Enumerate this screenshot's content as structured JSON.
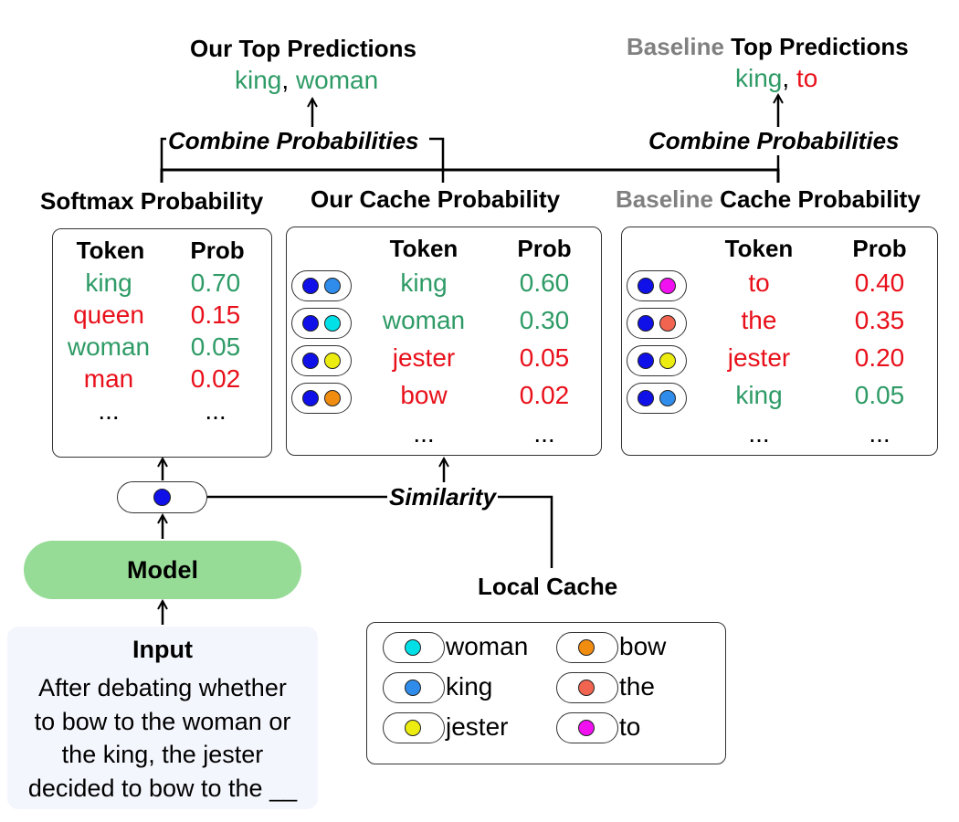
{
  "colors": {
    "green": "#2e9b66",
    "red": "#e8101a",
    "gray": "#808080",
    "query_dot": "#1010e8",
    "model_fill": "#96dc96",
    "input_fill": "#f4f6fd"
  },
  "our_predictions": {
    "title": "Our Top Predictions",
    "tokens": [
      {
        "text": "king",
        "color": "green"
      },
      {
        "text": ", ",
        "color": "black"
      },
      {
        "text": "woman",
        "color": "green"
      }
    ]
  },
  "baseline_predictions": {
    "title_prefix": "Baseline",
    "title_suffix": " Top Predictions",
    "tokens": [
      {
        "text": "king",
        "color": "green"
      },
      {
        "text": ", ",
        "color": "black"
      },
      {
        "text": "to",
        "color": "red"
      }
    ]
  },
  "combine_left": "Combine Probabilities",
  "combine_right": "Combine Probabilities",
  "softmax": {
    "title": "Softmax Probability",
    "header_token": "Token",
    "header_prob": "Prob",
    "rows": [
      {
        "token": "king",
        "prob": "0.70",
        "color": "green"
      },
      {
        "token": "queen",
        "prob": "0.15",
        "color": "red"
      },
      {
        "token": "woman",
        "prob": "0.05",
        "color": "green"
      },
      {
        "token": "man",
        "prob": "0.02",
        "color": "red"
      }
    ],
    "ellipsis": "..."
  },
  "our_cache": {
    "title": "Our Cache Probability",
    "header_token": "Token",
    "header_prob": "Prob",
    "rows": [
      {
        "token": "king",
        "prob": "0.60",
        "color": "green",
        "dot": "#2f8cea"
      },
      {
        "token": "woman",
        "prob": "0.30",
        "color": "green",
        "dot": "#00e0e6"
      },
      {
        "token": "jester",
        "prob": "0.05",
        "color": "red",
        "dot": "#ecec10"
      },
      {
        "token": "bow",
        "prob": "0.02",
        "color": "red",
        "dot": "#f08c10"
      }
    ],
    "ellipsis": "..."
  },
  "baseline_cache": {
    "title_prefix": "Baseline",
    "title_suffix": " Cache Probability",
    "header_token": "Token",
    "header_prob": "Prob",
    "rows": [
      {
        "token": "to",
        "prob": "0.40",
        "color": "red",
        "dot": "#f010f0"
      },
      {
        "token": "the",
        "prob": "0.35",
        "color": "red",
        "dot": "#f06450"
      },
      {
        "token": "jester",
        "prob": "0.20",
        "color": "red",
        "dot": "#ecec10"
      },
      {
        "token": "king",
        "prob": "0.05",
        "color": "green",
        "dot": "#2f8cea"
      }
    ],
    "ellipsis": "..."
  },
  "similarity_label": "Similarity",
  "model_label": "Model",
  "input": {
    "title": "Input",
    "lines": [
      "After debating whether",
      "to bow to the woman or",
      "the king, the jester",
      "decided to bow to the __"
    ]
  },
  "local_cache": {
    "title": "Local Cache",
    "items": [
      {
        "word": "woman",
        "dot": "#00e0e6"
      },
      {
        "word": "king",
        "dot": "#2f8cea"
      },
      {
        "word": "jester",
        "dot": "#ecec10"
      },
      {
        "word": "bow",
        "dot": "#f08c10"
      },
      {
        "word": "the",
        "dot": "#f06450"
      },
      {
        "word": "to",
        "dot": "#f010f0"
      }
    ]
  }
}
